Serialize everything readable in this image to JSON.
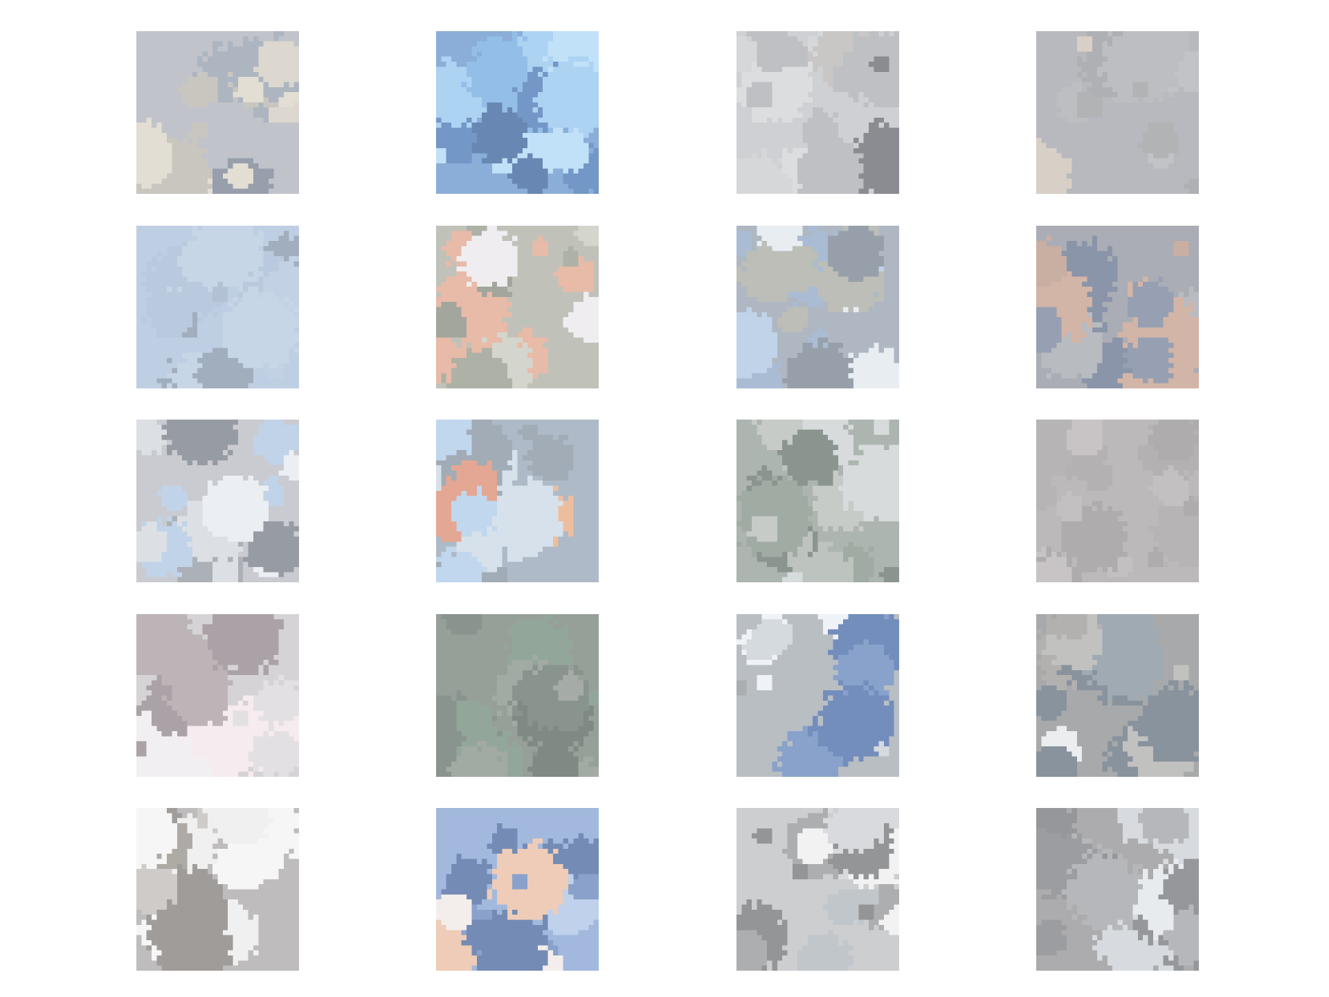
{
  "grid": {
    "rows": 5,
    "columns": 4,
    "images": [
      {
        "name": "image-tile-1",
        "base": "#a8acb5",
        "palette": [
          "#cfc8bd",
          "#8e99aa",
          "#d9d2c3",
          "#6f7a8e",
          "#b5b0a8"
        ]
      },
      {
        "name": "image-tile-2",
        "base": "#5d8fc8",
        "palette": [
          "#8ec3ef",
          "#3e6fb0",
          "#a9d6f5",
          "#2f5a96",
          "#6aa6df"
        ]
      },
      {
        "name": "image-tile-3",
        "base": "#bcbec3",
        "palette": [
          "#a6a8ad",
          "#cfd0d2",
          "#5f6068",
          "#b3b2b0",
          "#c7c8cb"
        ]
      },
      {
        "name": "image-tile-4",
        "base": "#9c9fa5",
        "palette": [
          "#a4a6ab",
          "#939699",
          "#c9bdb0",
          "#aaacb0",
          "#8f9297"
        ]
      },
      {
        "name": "image-tile-5",
        "base": "#a7bdd8",
        "palette": [
          "#9fb5d1",
          "#b2c6de",
          "#7d8fa6",
          "#abc0da",
          "#95a9c3"
        ]
      },
      {
        "name": "image-tile-6",
        "base": "#a8ab9f",
        "palette": [
          "#8e9384",
          "#c4c6bc",
          "#e0a087",
          "#e9e6ea",
          "#7e8476"
        ]
      },
      {
        "name": "image-tile-7",
        "base": "#8f9bab",
        "palette": [
          "#a9c2df",
          "#6f7c8a",
          "#dfe6ee",
          "#8aa3c4",
          "#a3a69b"
        ]
      },
      {
        "name": "image-tile-8",
        "base": "#8a8e99",
        "palette": [
          "#b48f7e",
          "#6f7c95",
          "#9da1a8",
          "#c19985",
          "#5f6c88"
        ]
      },
      {
        "name": "image-tile-9",
        "base": "#b4b8bf",
        "palette": [
          "#e4e8ee",
          "#8c929c",
          "#a9c3df",
          "#cfd4da",
          "#6f7681"
        ]
      },
      {
        "name": "image-tile-10",
        "base": "#8fa0b2",
        "palette": [
          "#d9866a",
          "#e6a679",
          "#a9c8e8",
          "#7d8d9c",
          "#c7d6e4"
        ]
      },
      {
        "name": "image-tile-11",
        "base": "#8d9990",
        "palette": [
          "#7a8b80",
          "#c8cdcf",
          "#a4aca6",
          "#5f6d66",
          "#b1b8b3"
        ]
      },
      {
        "name": "image-tile-12",
        "base": "#a29fa1",
        "palette": [
          "#9b9799",
          "#aba8aa",
          "#8f8c8e",
          "#b3aeb0",
          "#979496"
        ]
      },
      {
        "name": "image-tile-13",
        "base": "#c6c3c8",
        "palette": [
          "#ede9ee",
          "#8b7e85",
          "#d8d5da",
          "#a3979c",
          "#f3e4e8"
        ]
      },
      {
        "name": "image-tile-14",
        "base": "#6f7a72",
        "palette": [
          "#5d6b63",
          "#7f8a82",
          "#4f5d56",
          "#6a8474",
          "#838c86"
        ]
      },
      {
        "name": "image-tile-15",
        "base": "#9fa6ac",
        "palette": [
          "#e9eef3",
          "#5b7fb8",
          "#8a8f92",
          "#c5ccd3",
          "#3e63a3"
        ]
      },
      {
        "name": "image-tile-16",
        "base": "#87888b",
        "palette": [
          "#e4e7e8",
          "#5b6a78",
          "#969390",
          "#7b8996",
          "#a9aaa8"
        ]
      },
      {
        "name": "image-tile-17",
        "base": "#a5a3a4",
        "palette": [
          "#eceaea",
          "#7b7674",
          "#bcb7b3",
          "#8f8983",
          "#f4f3f3"
        ]
      },
      {
        "name": "image-tile-18",
        "base": "#7f9fd0",
        "palette": [
          "#efe8e4",
          "#e8b99c",
          "#5d7fb8",
          "#a7bfe3",
          "#3f5f99"
        ]
      },
      {
        "name": "image-tile-19",
        "base": "#b9bbbe",
        "palette": [
          "#eeeeef",
          "#8e8f91",
          "#c9ccd1",
          "#6b6d70",
          "#aab0b8"
        ]
      },
      {
        "name": "image-tile-20",
        "base": "#8c8d91",
        "palette": [
          "#c8cdd3",
          "#77787c",
          "#9a9ca0",
          "#e0e3e6",
          "#6d6f73"
        ]
      }
    ]
  }
}
